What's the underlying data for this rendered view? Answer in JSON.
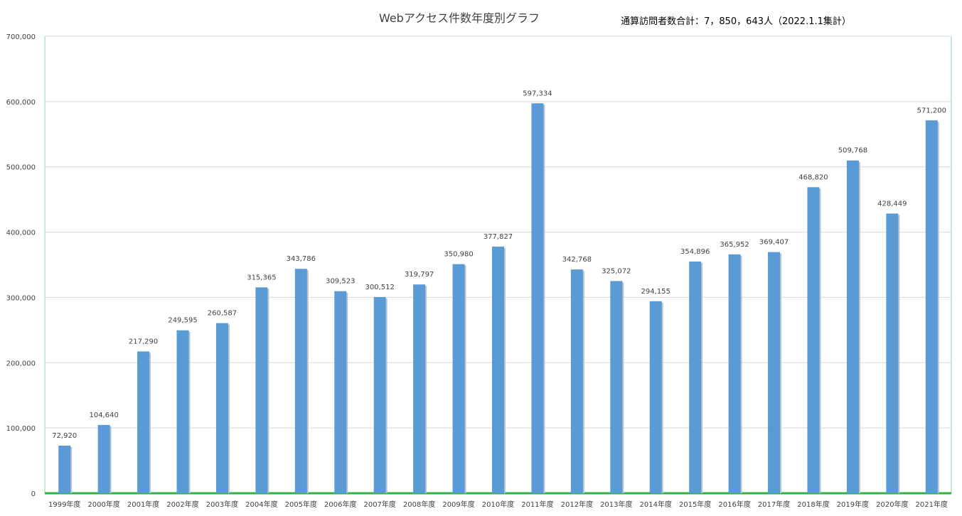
{
  "colors": {
    "bar": "#5b9bd5",
    "bar_shadow": "#b8c4d0",
    "grid": "#d9d9d9",
    "frame": "#c6ead0",
    "baseline": "#2fb24a",
    "text": "#404040"
  },
  "chart_data": {
    "type": "bar",
    "title": "Webアクセス件数年度別グラフ",
    "annotation": "通算訪問者数合計：7，850，643人（2022.1.1集計）",
    "categories": [
      "1999年度",
      "2000年度",
      "2001年度",
      "2002年度",
      "2003年度",
      "2004年度",
      "2005年度",
      "2006年度",
      "2007年度",
      "2008年度",
      "2009年度",
      "2010年度",
      "2011年度",
      "2012年度",
      "2013年度",
      "2014年度",
      "2015年度",
      "2016年度",
      "2017年度",
      "2018年度",
      "2019年度",
      "2020年度",
      "2021年度"
    ],
    "values": [
      72920,
      104640,
      217290,
      249595,
      260587,
      315365,
      343786,
      309523,
      300512,
      319797,
      350980,
      377827,
      597334,
      342768,
      325072,
      294155,
      354896,
      365952,
      369407,
      468820,
      509768,
      428449,
      571200
    ],
    "value_labels": [
      "72,920",
      "104,640",
      "217,290",
      "249,595",
      "260,587",
      "315,365",
      "343,786",
      "309,523",
      "300,512",
      "319,797",
      "350,980",
      "377,827",
      "597,334",
      "342,768",
      "325,072",
      "294,155",
      "354,896",
      "365,952",
      "369,407",
      "468,820",
      "509,768",
      "428,449",
      "571,200"
    ],
    "yticks": [
      0,
      100000,
      200000,
      300000,
      400000,
      500000,
      600000,
      700000
    ],
    "ytick_labels": [
      "0",
      "100,000",
      "200,000",
      "300,000",
      "400,000",
      "500,000",
      "600,000",
      "700,000"
    ],
    "ylim": [
      0,
      700000
    ],
    "xlabel": "",
    "ylabel": "",
    "grid": true,
    "legend": "none"
  }
}
